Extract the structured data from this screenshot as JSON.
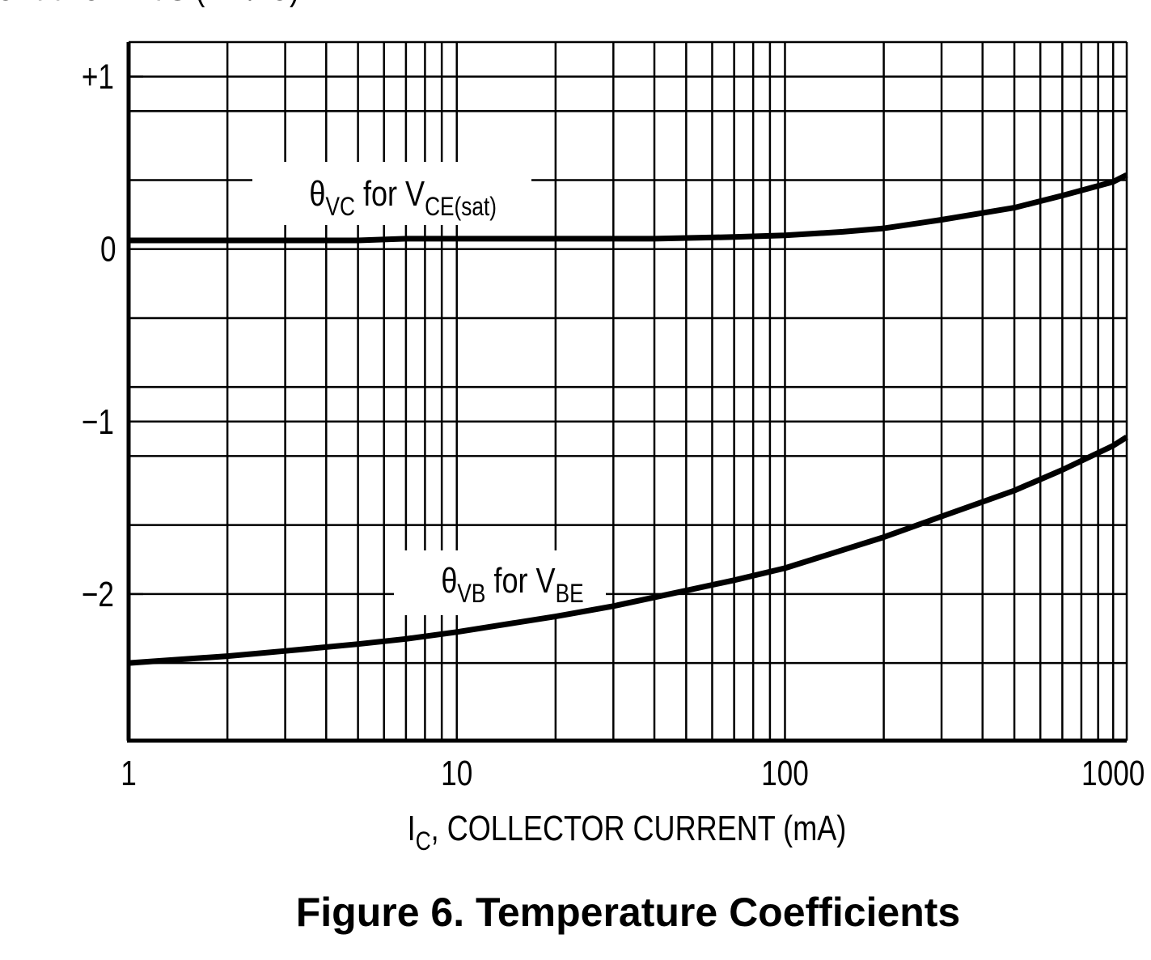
{
  "chart_data": {
    "type": "line",
    "title": "",
    "xlabel": {
      "main": "I",
      "sub": "C",
      "rest": ", COLLECTOR CURRENT (mA)"
    },
    "ylabel": {
      "main": "θ",
      "sub": "V",
      "rest": ", TEMPERATURE COEFFICIENTS (mV/°C)"
    },
    "x_scale": "log",
    "xlim": [
      1,
      1100
    ],
    "ylim": [
      -2.85,
      1.2
    ],
    "x_ticks": [
      {
        "value": 1,
        "label": "1"
      },
      {
        "value": 10,
        "label": "10"
      },
      {
        "value": 100,
        "label": "100"
      },
      {
        "value": 1000,
        "label": "1000"
      }
    ],
    "y_ticks": [
      {
        "value": 1,
        "label": "+1"
      },
      {
        "value": 0,
        "label": "0"
      },
      {
        "value": -1,
        "label": "−1"
      },
      {
        "value": -2,
        "label": "−2"
      }
    ],
    "y_minor_gridlines": [
      0.8,
      0.4,
      -0.4,
      -0.8,
      -1.2,
      -1.6,
      -2.4
    ],
    "grid": true,
    "series": [
      {
        "name": {
          "main": "θ",
          "sub": "VC",
          "mid": " for V",
          "sub2": "CE(sat)"
        },
        "x": [
          1,
          2,
          5,
          7,
          10,
          20,
          40,
          70,
          100,
          150,
          200,
          300,
          500,
          700,
          1000,
          1100
        ],
        "y": [
          0.05,
          0.05,
          0.05,
          0.06,
          0.06,
          0.06,
          0.06,
          0.07,
          0.08,
          0.1,
          0.12,
          0.17,
          0.24,
          0.31,
          0.39,
          0.43
        ]
      },
      {
        "name": {
          "main": "θ",
          "sub": "VB",
          "mid": " for V",
          "sub2": "BE"
        },
        "x": [
          1,
          2,
          3,
          5,
          7,
          10,
          20,
          30,
          50,
          70,
          100,
          200,
          300,
          500,
          700,
          1000,
          1100
        ],
        "y": [
          -2.4,
          -2.36,
          -2.33,
          -2.29,
          -2.26,
          -2.22,
          -2.13,
          -2.07,
          -1.98,
          -1.92,
          -1.85,
          -1.67,
          -1.55,
          -1.4,
          -1.28,
          -1.14,
          -1.09
        ]
      }
    ]
  },
  "figure_caption": "Figure 6. Temperature Coefficients"
}
